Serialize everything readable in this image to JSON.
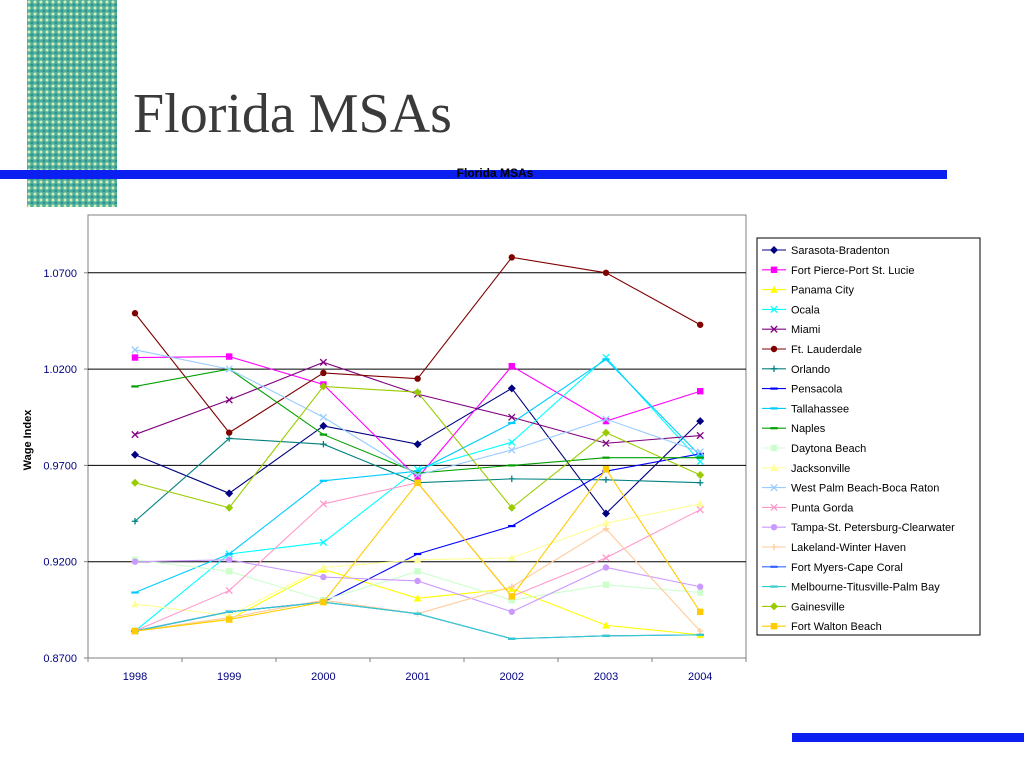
{
  "slide": {
    "title": "Florida MSAs"
  },
  "chart_data": {
    "type": "line",
    "title": "Florida MSAs",
    "xlabel": "",
    "ylabel": "Wage Index",
    "x": [
      "1998",
      "1999",
      "2000",
      "2001",
      "2002",
      "2003",
      "2004"
    ],
    "yticks": [
      "0.8700",
      "0.9200",
      "0.9700",
      "1.0200",
      "1.0700"
    ],
    "ylim": [
      0.87,
      1.1
    ],
    "grid": true,
    "legend_position": "right",
    "series": [
      {
        "name": "Sarasota-Bradenton",
        "color": "#000080",
        "marker": "diamond",
        "values": [
          0.9755,
          0.9555,
          0.9905,
          0.981,
          1.01,
          0.945,
          0.993
        ]
      },
      {
        "name": "Fort Pierce-Port St. Lucie",
        "color": "#ff00ff",
        "marker": "square",
        "values": [
          1.026,
          1.0265,
          1.012,
          0.9635,
          1.0215,
          0.993,
          1.0085
        ]
      },
      {
        "name": "Panama City",
        "color": "#ffff00",
        "marker": "triangle",
        "values": [
          0.884,
          0.89,
          0.916,
          0.901,
          0.906,
          0.887,
          0.882
        ]
      },
      {
        "name": "Ocala",
        "color": "#00ffff",
        "marker": "x",
        "values": [
          0.884,
          0.924,
          0.93,
          0.968,
          0.982,
          1.026,
          0.972
        ]
      },
      {
        "name": "Miami",
        "color": "#800080",
        "marker": "x",
        "values": [
          0.986,
          1.004,
          1.0235,
          1.007,
          0.995,
          0.9815,
          0.9855
        ]
      },
      {
        "name": "Ft. Lauderdale",
        "color": "#800000",
        "marker": "circle",
        "values": [
          1.049,
          0.987,
          1.018,
          1.015,
          1.078,
          1.07,
          1.043
        ]
      },
      {
        "name": "Orlando",
        "color": "#008080",
        "marker": "plus",
        "values": [
          0.941,
          0.984,
          0.981,
          0.961,
          0.963,
          0.9625,
          0.961
        ]
      },
      {
        "name": "Pensacola",
        "color": "#0000ff",
        "marker": "dash",
        "values": [
          0.884,
          0.894,
          0.899,
          0.924,
          0.9385,
          0.967,
          0.976
        ]
      },
      {
        "name": "Tallahassee",
        "color": "#00ccff",
        "marker": "dash",
        "values": [
          0.904,
          0.924,
          0.962,
          0.967,
          0.992,
          1.025,
          0.975
        ]
      },
      {
        "name": "Naples",
        "color": "#00a000",
        "marker": "dash",
        "values": [
          1.011,
          1.02,
          0.986,
          0.966,
          0.97,
          0.974,
          0.974
        ]
      },
      {
        "name": "Daytona Beach",
        "color": "#ccffcc",
        "marker": "square",
        "values": [
          0.921,
          0.915,
          0.9,
          0.915,
          0.9,
          0.908,
          0.904
        ]
      },
      {
        "name": "Jacksonville",
        "color": "#ffff99",
        "marker": "triangle",
        "values": [
          0.898,
          0.892,
          0.917,
          0.921,
          0.922,
          0.94,
          0.95
        ]
      },
      {
        "name": "West Palm Beach-Boca Raton",
        "color": "#99ccff",
        "marker": "x",
        "values": [
          1.03,
          1.02,
          0.995,
          0.965,
          0.978,
          0.994,
          0.977
        ]
      },
      {
        "name": "Punta Gorda",
        "color": "#ff99cc",
        "marker": "x",
        "values": [
          0.884,
          0.905,
          0.95,
          0.961,
          0.902,
          0.922,
          0.947
        ]
      },
      {
        "name": "Tampa-St. Petersburg-Clearwater",
        "color": "#cc99ff",
        "marker": "circle",
        "values": [
          0.92,
          0.921,
          0.912,
          0.91,
          0.894,
          0.917,
          0.907
        ]
      },
      {
        "name": "Lakeland-Winter Haven",
        "color": "#ffcc99",
        "marker": "plus",
        "values": [
          0.884,
          0.891,
          0.9,
          0.893,
          0.907,
          0.937,
          0.884
        ]
      },
      {
        "name": "Fort Myers-Cape Coral",
        "color": "#3366ff",
        "marker": "dash",
        "values": [
          0.884,
          0.894,
          0.899,
          0.893,
          0.88,
          0.8815,
          0.882
        ]
      },
      {
        "name": "Melbourne-Titusville-Palm Bay",
        "color": "#33cccc",
        "marker": "dash",
        "values": [
          0.884,
          0.894,
          0.899,
          0.893,
          0.88,
          0.8815,
          0.882
        ]
      },
      {
        "name": "Gainesville",
        "color": "#99cc00",
        "marker": "diamond",
        "values": [
          0.961,
          0.948,
          1.011,
          1.008,
          0.948,
          0.987,
          0.965
        ]
      },
      {
        "name": "Fort Walton Beach",
        "color": "#ffcc00",
        "marker": "square",
        "values": [
          0.884,
          0.89,
          0.899,
          0.961,
          0.902,
          0.968,
          0.894
        ]
      }
    ]
  }
}
